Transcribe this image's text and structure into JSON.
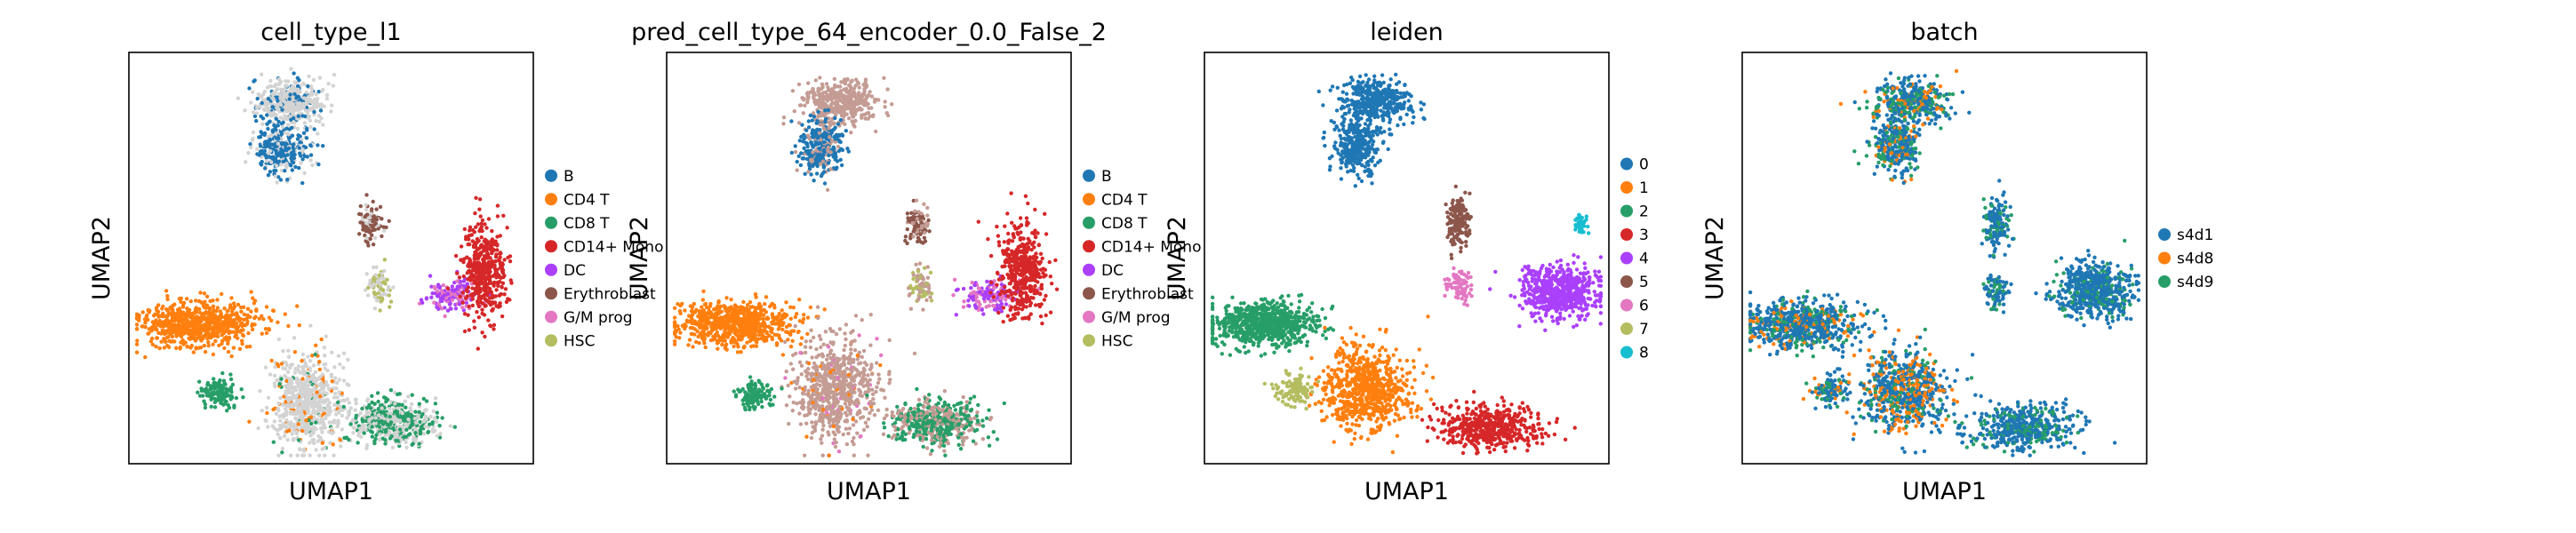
{
  "figure": {
    "axis_x_label": "UMAP1",
    "axis_y_label": "UMAP2"
  },
  "chart_data": [
    {
      "type": "scatter",
      "title": "cell_type_l1",
      "xlabel": "UMAP1",
      "ylabel": "UMAP2",
      "legend_placement": "right",
      "series": [
        {
          "name": "B",
          "color": "#1f77b4"
        },
        {
          "name": "CD4 T",
          "color": "#ff7f0e"
        },
        {
          "name": "CD8 T",
          "color": "#279e68"
        },
        {
          "name": "CD14+ Mono",
          "color": "#d62728"
        },
        {
          "name": "DC",
          "color": "#aa40fc"
        },
        {
          "name": "Erythroblast",
          "color": "#8c564b"
        },
        {
          "name": "G/M prog",
          "color": "#e377c2"
        },
        {
          "name": "HSC",
          "color": "#b5bd61"
        }
      ],
      "unlabeled_color": "#d3d3d3",
      "clusters": [
        {
          "x": 0.4,
          "y": 0.12,
          "rx": 0.08,
          "ry": 0.05,
          "n": 400,
          "mix": [
            [
              "unlabeled",
              0.85
            ],
            [
              "B",
              0.15
            ]
          ]
        },
        {
          "x": 0.38,
          "y": 0.23,
          "rx": 0.06,
          "ry": 0.06,
          "n": 300,
          "mix": [
            [
              "B",
              0.75
            ],
            [
              "unlabeled",
              0.25
            ]
          ]
        },
        {
          "x": 0.6,
          "y": 0.42,
          "rx": 0.025,
          "ry": 0.04,
          "n": 100,
          "mix": [
            [
              "Erythroblast",
              0.7
            ],
            [
              "unlabeled",
              0.3
            ]
          ]
        },
        {
          "x": 0.62,
          "y": 0.57,
          "rx": 0.025,
          "ry": 0.04,
          "n": 80,
          "mix": [
            [
              "unlabeled",
              0.5
            ],
            [
              "HSC",
              0.5
            ]
          ]
        },
        {
          "x": 0.8,
          "y": 0.59,
          "rx": 0.06,
          "ry": 0.035,
          "n": 150,
          "mix": [
            [
              "DC",
              0.6
            ],
            [
              "G/M prog",
              0.4
            ]
          ]
        },
        {
          "x": 0.88,
          "y": 0.53,
          "rx": 0.05,
          "ry": 0.11,
          "n": 450,
          "mix": [
            [
              "CD14+ Mono",
              1.0
            ]
          ]
        },
        {
          "x": 0.17,
          "y": 0.66,
          "rx": 0.13,
          "ry": 0.05,
          "n": 700,
          "mix": [
            [
              "CD4 T",
              1.0
            ]
          ]
        },
        {
          "x": 0.44,
          "y": 0.85,
          "rx": 0.08,
          "ry": 0.1,
          "n": 700,
          "mix": [
            [
              "unlabeled",
              0.85
            ],
            [
              "CD4 T",
              0.1
            ],
            [
              "CD8 T",
              0.05
            ]
          ]
        },
        {
          "x": 0.22,
          "y": 0.83,
          "rx": 0.04,
          "ry": 0.035,
          "n": 120,
          "mix": [
            [
              "CD8 T",
              1.0
            ]
          ]
        },
        {
          "x": 0.65,
          "y": 0.9,
          "rx": 0.1,
          "ry": 0.05,
          "n": 500,
          "mix": [
            [
              "unlabeled",
              0.45
            ],
            [
              "CD8 T",
              0.55
            ]
          ]
        }
      ]
    },
    {
      "type": "scatter",
      "title": "pred_cell_type_64_encoder_0.0_False_2",
      "xlabel": "UMAP1",
      "ylabel": "UMAP2",
      "legend_placement": "right",
      "series": [
        {
          "name": "B",
          "color": "#1f77b4"
        },
        {
          "name": "CD4 T",
          "color": "#ff7f0e"
        },
        {
          "name": "CD8 T",
          "color": "#279e68"
        },
        {
          "name": "CD14+ Mono",
          "color": "#d62728"
        },
        {
          "name": "DC",
          "color": "#aa40fc"
        },
        {
          "name": "Erythroblast",
          "color": "#8c564b"
        },
        {
          "name": "G/M prog",
          "color": "#e377c2"
        },
        {
          "name": "HSC",
          "color": "#b5bd61"
        }
      ],
      "unlabeled_color": "#c49c94",
      "clusters": [
        {
          "x": 0.43,
          "y": 0.12,
          "rx": 0.08,
          "ry": 0.05,
          "n": 400,
          "mix": [
            [
              "unlabeled",
              1.0
            ]
          ]
        },
        {
          "x": 0.38,
          "y": 0.23,
          "rx": 0.05,
          "ry": 0.06,
          "n": 300,
          "mix": [
            [
              "B",
              0.8
            ],
            [
              "unlabeled",
              0.2
            ]
          ]
        },
        {
          "x": 0.62,
          "y": 0.42,
          "rx": 0.025,
          "ry": 0.04,
          "n": 100,
          "mix": [
            [
              "Erythroblast",
              0.6
            ],
            [
              "unlabeled",
              0.4
            ]
          ]
        },
        {
          "x": 0.63,
          "y": 0.57,
          "rx": 0.025,
          "ry": 0.04,
          "n": 80,
          "mix": [
            [
              "unlabeled",
              0.5
            ],
            [
              "HSC",
              0.5
            ]
          ]
        },
        {
          "x": 0.8,
          "y": 0.59,
          "rx": 0.06,
          "ry": 0.035,
          "n": 150,
          "mix": [
            [
              "DC",
              0.6
            ],
            [
              "G/M prog",
              0.4
            ]
          ]
        },
        {
          "x": 0.88,
          "y": 0.53,
          "rx": 0.05,
          "ry": 0.11,
          "n": 450,
          "mix": [
            [
              "CD14+ Mono",
              1.0
            ]
          ]
        },
        {
          "x": 0.17,
          "y": 0.66,
          "rx": 0.13,
          "ry": 0.05,
          "n": 700,
          "mix": [
            [
              "CD4 T",
              1.0
            ]
          ]
        },
        {
          "x": 0.42,
          "y": 0.82,
          "rx": 0.09,
          "ry": 0.11,
          "n": 700,
          "mix": [
            [
              "unlabeled",
              0.9
            ],
            [
              "CD4 T",
              0.05
            ],
            [
              "G/M prog",
              0.05
            ]
          ]
        },
        {
          "x": 0.22,
          "y": 0.83,
          "rx": 0.04,
          "ry": 0.035,
          "n": 120,
          "mix": [
            [
              "CD8 T",
              1.0
            ]
          ]
        },
        {
          "x": 0.67,
          "y": 0.9,
          "rx": 0.1,
          "ry": 0.05,
          "n": 500,
          "mix": [
            [
              "CD8 T",
              0.6
            ],
            [
              "unlabeled",
              0.4
            ]
          ]
        }
      ]
    },
    {
      "type": "scatter",
      "title": "leiden",
      "xlabel": "UMAP1",
      "ylabel": "UMAP2",
      "legend_placement": "right",
      "series": [
        {
          "name": "0",
          "color": "#1f77b4"
        },
        {
          "name": "1",
          "color": "#ff7f0e"
        },
        {
          "name": "2",
          "color": "#279e68"
        },
        {
          "name": "3",
          "color": "#d62728"
        },
        {
          "name": "4",
          "color": "#aa40fc"
        },
        {
          "name": "5",
          "color": "#8c564b"
        },
        {
          "name": "6",
          "color": "#e377c2"
        },
        {
          "name": "7",
          "color": "#b5bd61"
        },
        {
          "name": "8",
          "color": "#17becf"
        }
      ],
      "clusters": [
        {
          "x": 0.42,
          "y": 0.12,
          "rx": 0.08,
          "ry": 0.05,
          "n": 400,
          "mix": [
            [
              "0",
              1.0
            ]
          ]
        },
        {
          "x": 0.38,
          "y": 0.23,
          "rx": 0.05,
          "ry": 0.06,
          "n": 300,
          "mix": [
            [
              "0",
              1.0
            ]
          ]
        },
        {
          "x": 0.63,
          "y": 0.41,
          "rx": 0.025,
          "ry": 0.06,
          "n": 150,
          "mix": [
            [
              "5",
              1.0
            ]
          ]
        },
        {
          "x": 0.63,
          "y": 0.57,
          "rx": 0.03,
          "ry": 0.035,
          "n": 80,
          "mix": [
            [
              "6",
              1.0
            ]
          ]
        },
        {
          "x": 0.88,
          "y": 0.58,
          "rx": 0.09,
          "ry": 0.06,
          "n": 600,
          "mix": [
            [
              "4",
              1.0
            ]
          ]
        },
        {
          "x": 0.93,
          "y": 0.42,
          "rx": 0.015,
          "ry": 0.03,
          "n": 40,
          "mix": [
            [
              "8",
              1.0
            ]
          ]
        },
        {
          "x": 0.15,
          "y": 0.66,
          "rx": 0.12,
          "ry": 0.05,
          "n": 700,
          "mix": [
            [
              "2",
              1.0
            ]
          ]
        },
        {
          "x": 0.4,
          "y": 0.82,
          "rx": 0.1,
          "ry": 0.09,
          "n": 700,
          "mix": [
            [
              "1",
              1.0
            ]
          ]
        },
        {
          "x": 0.22,
          "y": 0.82,
          "rx": 0.04,
          "ry": 0.035,
          "n": 120,
          "mix": [
            [
              "7",
              1.0
            ]
          ]
        },
        {
          "x": 0.7,
          "y": 0.91,
          "rx": 0.12,
          "ry": 0.05,
          "n": 500,
          "mix": [
            [
              "3",
              1.0
            ]
          ]
        }
      ]
    },
    {
      "type": "scatter",
      "title": "batch",
      "xlabel": "UMAP1",
      "ylabel": "UMAP2",
      "legend_placement": "right",
      "series": [
        {
          "name": "s4d1",
          "color": "#1f77b4"
        },
        {
          "name": "s4d8",
          "color": "#ff7f0e"
        },
        {
          "name": "s4d9",
          "color": "#279e68"
        }
      ],
      "clusters": [
        {
          "x": 0.42,
          "y": 0.12,
          "rx": 0.08,
          "ry": 0.05,
          "n": 400,
          "mix": [
            [
              "s4d1",
              0.55
            ],
            [
              "s4d8",
              0.2
            ],
            [
              "s4d9",
              0.25
            ]
          ]
        },
        {
          "x": 0.38,
          "y": 0.23,
          "rx": 0.05,
          "ry": 0.06,
          "n": 300,
          "mix": [
            [
              "s4d1",
              0.55
            ],
            [
              "s4d8",
              0.2
            ],
            [
              "s4d9",
              0.25
            ]
          ]
        },
        {
          "x": 0.63,
          "y": 0.42,
          "rx": 0.03,
          "ry": 0.06,
          "n": 150,
          "mix": [
            [
              "s4d1",
              0.7
            ],
            [
              "s4d9",
              0.3
            ]
          ]
        },
        {
          "x": 0.63,
          "y": 0.58,
          "rx": 0.03,
          "ry": 0.035,
          "n": 80,
          "mix": [
            [
              "s4d1",
              0.7
            ],
            [
              "s4d9",
              0.3
            ]
          ]
        },
        {
          "x": 0.87,
          "y": 0.58,
          "rx": 0.09,
          "ry": 0.06,
          "n": 600,
          "mix": [
            [
              "s4d1",
              0.85
            ],
            [
              "s4d9",
              0.15
            ]
          ]
        },
        {
          "x": 0.15,
          "y": 0.66,
          "rx": 0.12,
          "ry": 0.05,
          "n": 700,
          "mix": [
            [
              "s4d1",
              0.65
            ],
            [
              "s4d8",
              0.15
            ],
            [
              "s4d9",
              0.2
            ]
          ]
        },
        {
          "x": 0.4,
          "y": 0.82,
          "rx": 0.1,
          "ry": 0.09,
          "n": 700,
          "mix": [
            [
              "s4d1",
              0.55
            ],
            [
              "s4d8",
              0.3
            ],
            [
              "s4d9",
              0.15
            ]
          ]
        },
        {
          "x": 0.22,
          "y": 0.82,
          "rx": 0.04,
          "ry": 0.035,
          "n": 120,
          "mix": [
            [
              "s4d1",
              0.5
            ],
            [
              "s4d8",
              0.2
            ],
            [
              "s4d9",
              0.3
            ]
          ]
        },
        {
          "x": 0.7,
          "y": 0.91,
          "rx": 0.12,
          "ry": 0.05,
          "n": 500,
          "mix": [
            [
              "s4d1",
              0.75
            ],
            [
              "s4d9",
              0.25
            ]
          ]
        }
      ]
    }
  ]
}
